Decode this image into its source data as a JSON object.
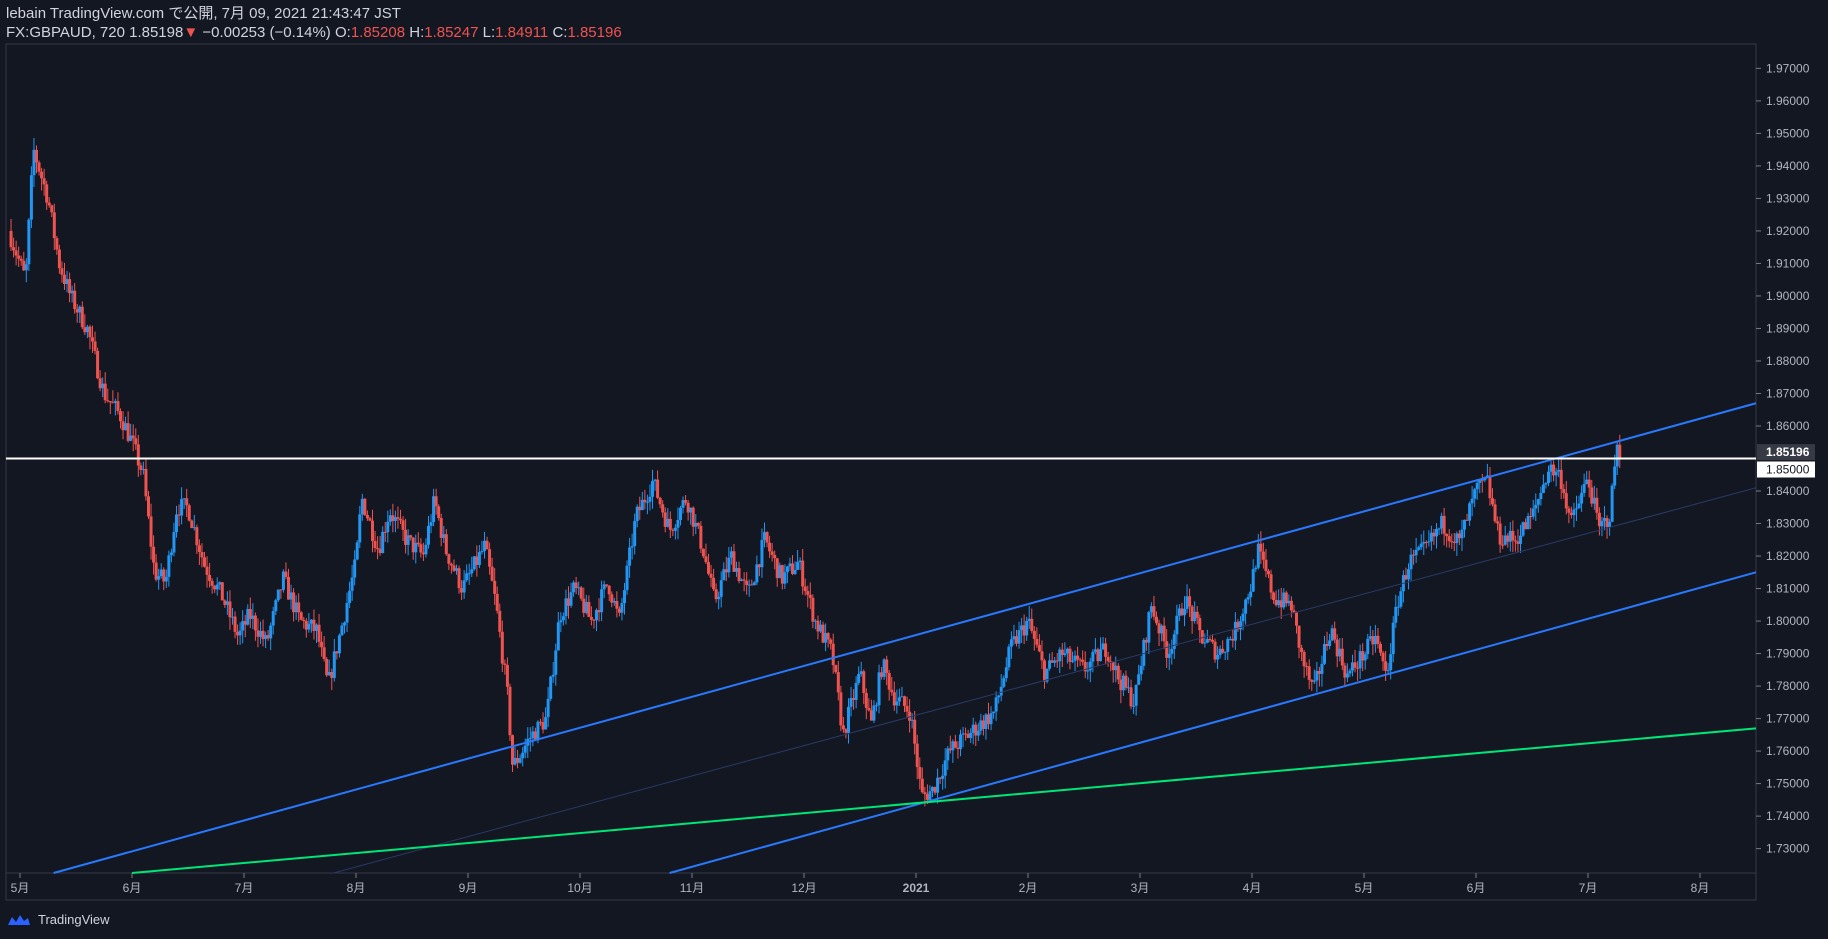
{
  "header": {
    "publisher": "lebain TradingView.com で公開, 7月 09, 2021 21:43:47 JST",
    "symbol": "FX:GBPAUD, 720",
    "last": "1.85198",
    "change": "−0.00253 (−0.14%)",
    "open_label": "O:",
    "open": "1.85208",
    "high_label": "H:",
    "high": "1.85247",
    "low_label": "L:",
    "low": "1.84911",
    "close_label": "C:",
    "close": "1.85196"
  },
  "footer": {
    "brand": "TradingView"
  },
  "colors": {
    "background": "#131722",
    "up": "#2196f3",
    "down": "#ef5350",
    "channel": "#2979ff",
    "green": "#00e676",
    "hline": "#ffffff"
  },
  "chart_data": {
    "type": "candlestick",
    "symbol": "FX:GBPAUD",
    "interval": "720",
    "y_range": [
      1.7225,
      1.9775
    ],
    "y_ticks": [
      "1.97000",
      "1.96000",
      "1.95000",
      "1.94000",
      "1.93000",
      "1.92000",
      "1.91000",
      "1.90000",
      "1.89000",
      "1.88000",
      "1.87000",
      "1.86000",
      "1.84000",
      "1.83000",
      "1.82000",
      "1.81000",
      "1.80000",
      "1.79000",
      "1.78000",
      "1.77000",
      "1.76000",
      "1.75000",
      "1.74000",
      "1.73000"
    ],
    "y_tick_values": [
      1.97,
      1.96,
      1.95,
      1.94,
      1.93,
      1.92,
      1.91,
      1.9,
      1.89,
      1.88,
      1.87,
      1.86,
      1.84,
      1.83,
      1.82,
      1.81,
      1.8,
      1.79,
      1.78,
      1.77,
      1.76,
      1.75,
      1.74,
      1.73
    ],
    "price_label": "1.85196",
    "price_value": 1.85196,
    "hline_label": "1.85000",
    "hline_value": 1.85,
    "x_range": [
      0,
      15.5
    ],
    "x_labels": [
      "5月",
      "6月",
      "7月",
      "8月",
      "9月",
      "10月",
      "11月",
      "12月",
      "2021",
      "2月",
      "3月",
      "4月",
      "5月",
      "6月",
      "7月",
      "8月"
    ],
    "x_label_months": [
      0,
      1,
      2,
      3,
      4,
      5,
      6,
      7,
      8,
      9,
      10,
      11,
      12,
      13,
      14,
      15
    ],
    "price_path": [
      [
        -0.1,
        1.92
      ],
      [
        0.0,
        1.91
      ],
      [
        0.05,
        1.905
      ],
      [
        0.12,
        1.945
      ],
      [
        0.25,
        1.93
      ],
      [
        0.35,
        1.91
      ],
      [
        0.45,
        1.9
      ],
      [
        0.6,
        1.89
      ],
      [
        0.75,
        1.87
      ],
      [
        0.9,
        1.863
      ],
      [
        1.0,
        1.855
      ],
      [
        1.1,
        1.845
      ],
      [
        1.2,
        1.815
      ],
      [
        1.3,
        1.812
      ],
      [
        1.4,
        1.835
      ],
      [
        1.5,
        1.835
      ],
      [
        1.65,
        1.817
      ],
      [
        1.8,
        1.808
      ],
      [
        1.95,
        1.795
      ],
      [
        2.05,
        1.802
      ],
      [
        2.2,
        1.793
      ],
      [
        2.35,
        1.813
      ],
      [
        2.5,
        1.8
      ],
      [
        2.65,
        1.797
      ],
      [
        2.75,
        1.78
      ],
      [
        2.85,
        1.795
      ],
      [
        3.0,
        1.818
      ],
      [
        3.05,
        1.838
      ],
      [
        3.2,
        1.822
      ],
      [
        3.3,
        1.834
      ],
      [
        3.45,
        1.825
      ],
      [
        3.6,
        1.82
      ],
      [
        3.7,
        1.837
      ],
      [
        3.8,
        1.822
      ],
      [
        3.95,
        1.81
      ],
      [
        4.15,
        1.823
      ],
      [
        4.25,
        1.805
      ],
      [
        4.35,
        1.778
      ],
      [
        4.4,
        1.755
      ],
      [
        4.55,
        1.764
      ],
      [
        4.7,
        1.77
      ],
      [
        4.82,
        1.802
      ],
      [
        4.95,
        1.81
      ],
      [
        5.1,
        1.8
      ],
      [
        5.25,
        1.812
      ],
      [
        5.35,
        1.8
      ],
      [
        5.5,
        1.832
      ],
      [
        5.65,
        1.843
      ],
      [
        5.8,
        1.828
      ],
      [
        5.95,
        1.838
      ],
      [
        6.1,
        1.822
      ],
      [
        6.2,
        1.806
      ],
      [
        6.35,
        1.82
      ],
      [
        6.5,
        1.808
      ],
      [
        6.65,
        1.825
      ],
      [
        6.8,
        1.813
      ],
      [
        6.95,
        1.818
      ],
      [
        7.1,
        1.8
      ],
      [
        7.25,
        1.79
      ],
      [
        7.35,
        1.765
      ],
      [
        7.5,
        1.784
      ],
      [
        7.6,
        1.768
      ],
      [
        7.7,
        1.787
      ],
      [
        7.8,
        1.777
      ],
      [
        7.95,
        1.772
      ],
      [
        8.05,
        1.746
      ],
      [
        8.15,
        1.748
      ],
      [
        8.3,
        1.76
      ],
      [
        8.5,
        1.766
      ],
      [
        8.7,
        1.772
      ],
      [
        8.85,
        1.792
      ],
      [
        9.0,
        1.8
      ],
      [
        9.15,
        1.784
      ],
      [
        9.3,
        1.79
      ],
      [
        9.5,
        1.785
      ],
      [
        9.7,
        1.792
      ],
      [
        9.8,
        1.783
      ],
      [
        9.95,
        1.775
      ],
      [
        10.1,
        1.805
      ],
      [
        10.25,
        1.79
      ],
      [
        10.4,
        1.807
      ],
      [
        10.55,
        1.795
      ],
      [
        10.7,
        1.79
      ],
      [
        10.85,
        1.797
      ],
      [
        11.0,
        1.812
      ],
      [
        11.05,
        1.822
      ],
      [
        11.2,
        1.807
      ],
      [
        11.35,
        1.805
      ],
      [
        11.45,
        1.788
      ],
      [
        11.55,
        1.778
      ],
      [
        11.7,
        1.798
      ],
      [
        11.85,
        1.783
      ],
      [
        12.0,
        1.79
      ],
      [
        12.1,
        1.795
      ],
      [
        12.2,
        1.783
      ],
      [
        12.3,
        1.806
      ],
      [
        12.4,
        1.818
      ],
      [
        12.55,
        1.822
      ],
      [
        12.7,
        1.83
      ],
      [
        12.85,
        1.824
      ],
      [
        13.0,
        1.84
      ],
      [
        13.1,
        1.843
      ],
      [
        13.2,
        1.826
      ],
      [
        13.35,
        1.825
      ],
      [
        13.5,
        1.832
      ],
      [
        13.65,
        1.847
      ],
      [
        13.75,
        1.845
      ],
      [
        13.85,
        1.83
      ],
      [
        14.0,
        1.844
      ],
      [
        14.1,
        1.828
      ],
      [
        14.2,
        1.833
      ],
      [
        14.25,
        1.853
      ],
      [
        14.3,
        1.852
      ]
    ],
    "trendlines": [
      {
        "name": "channel-upper",
        "color": "#2979ff",
        "from": [
          0.3,
          1.7225
        ],
        "to": [
          15.5,
          1.867
        ]
      },
      {
        "name": "channel-lower",
        "color": "#2979ff",
        "from": [
          5.8,
          1.7225
        ],
        "to": [
          15.5,
          1.815
        ]
      },
      {
        "name": "channel-mid",
        "color": "#2a3a66",
        "from": [
          2.8,
          1.7225
        ],
        "to": [
          15.5,
          1.841
        ]
      },
      {
        "name": "green-support",
        "color": "#00e676",
        "from": [
          1.0,
          1.7225
        ],
        "to": [
          15.5,
          1.767
        ]
      }
    ]
  }
}
